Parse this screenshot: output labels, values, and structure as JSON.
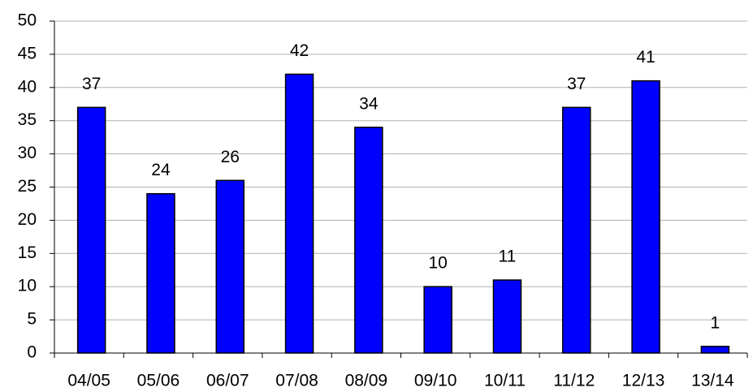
{
  "chart_data": {
    "type": "bar",
    "categories": [
      "04/05",
      "05/06",
      "06/07",
      "07/08",
      "08/09",
      "09/10",
      "10/11",
      "11/12",
      "12/13",
      "13/14"
    ],
    "values": [
      37,
      24,
      26,
      42,
      34,
      10,
      11,
      37,
      41,
      1
    ],
    "color": "#0000ff",
    "ylim": [
      0,
      50
    ],
    "yticks": [
      0,
      5,
      10,
      15,
      20,
      25,
      30,
      35,
      40,
      45,
      50
    ],
    "grid": true,
    "data_labels": true
  }
}
